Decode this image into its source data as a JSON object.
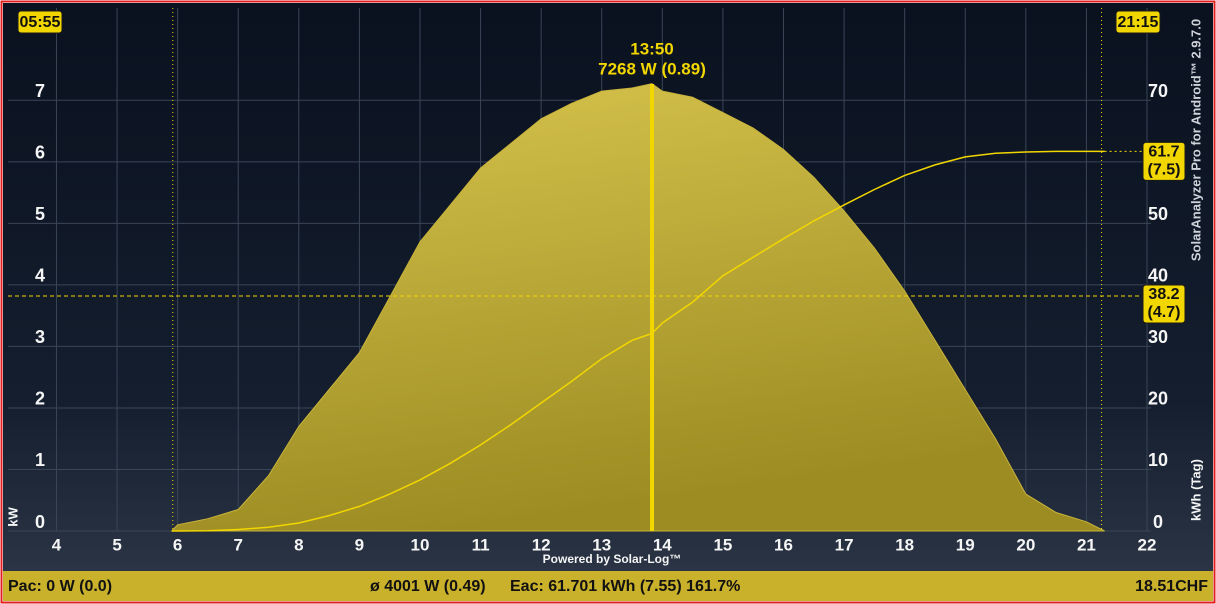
{
  "chart_data": {
    "type": "area",
    "x": [
      5.9,
      6,
      6.5,
      7,
      7.5,
      8,
      8.5,
      9,
      9.5,
      10,
      10.5,
      11,
      11.5,
      12,
      12.5,
      13,
      13.5,
      13.83,
      14,
      14.5,
      15,
      15.5,
      16,
      16.5,
      17,
      17.5,
      18,
      18.5,
      19,
      19.5,
      20,
      20.5,
      21,
      21.3
    ],
    "series": [
      {
        "name": "kW",
        "color": "#c9b43a",
        "values": [
          0,
          0.1,
          0.2,
          0.35,
          0.9,
          1.7,
          2.3,
          2.9,
          3.8,
          4.7,
          5.3,
          5.9,
          6.3,
          6.7,
          6.95,
          7.15,
          7.2,
          7.27,
          7.15,
          7.05,
          6.8,
          6.55,
          6.2,
          5.75,
          5.2,
          4.6,
          3.9,
          3.1,
          2.3,
          1.5,
          0.6,
          0.3,
          0.15,
          0
        ]
      },
      {
        "name": "kWh (Tag)",
        "color": "#f2d600",
        "axis": "y2",
        "values": [
          0,
          0,
          0.05,
          0.25,
          0.6,
          1.3,
          2.5,
          4,
          6,
          8.3,
          11,
          14,
          17.3,
          20.8,
          24.3,
          28,
          31,
          32.1,
          33.8,
          37.2,
          41.5,
          44.5,
          47.5,
          50.4,
          53,
          55.5,
          57.8,
          59.5,
          60.8,
          61.4,
          61.6,
          61.7,
          61.7,
          61.7
        ]
      }
    ],
    "xlim": [
      3.2,
      22
    ],
    "xticks": [
      4,
      5,
      6,
      7,
      8,
      9,
      10,
      11,
      12,
      13,
      14,
      15,
      16,
      17,
      18,
      19,
      20,
      21,
      22
    ],
    "ylim": [
      0,
      8.5
    ],
    "yticks": [
      0,
      1,
      2,
      3,
      4,
      5,
      6,
      7
    ],
    "y2lim": [
      0,
      85
    ],
    "y2ticks": [
      0,
      10,
      20,
      30,
      40,
      50,
      60,
      70
    ],
    "grid": true,
    "ylabel": "kW",
    "y2label": "kWh (Tag)",
    "start": {
      "x": 5.92,
      "label": "05:55"
    },
    "end": {
      "x": 21.25,
      "label": "21:15"
    },
    "cursor": {
      "x": 13.83,
      "time": "13:50",
      "reading": "7268 W (0.89)"
    },
    "hline": {
      "value": 38.2,
      "lines": [
        "38.2",
        "(4.7)"
      ]
    },
    "energy_label": {
      "value": 61.7,
      "lines": [
        "61.7",
        "(7.5)"
      ]
    },
    "watermark": "SolarAnalyzer Pro for Android™ 2.9.7.0",
    "credit": "Powered by Solar-Log™",
    "footer": [
      "Pac: 0 W (0.0)",
      "ø 4001 W (0.49)",
      "Eac: 61.701 kWh (7.55) 161.7%",
      "18.51CHF"
    ]
  }
}
